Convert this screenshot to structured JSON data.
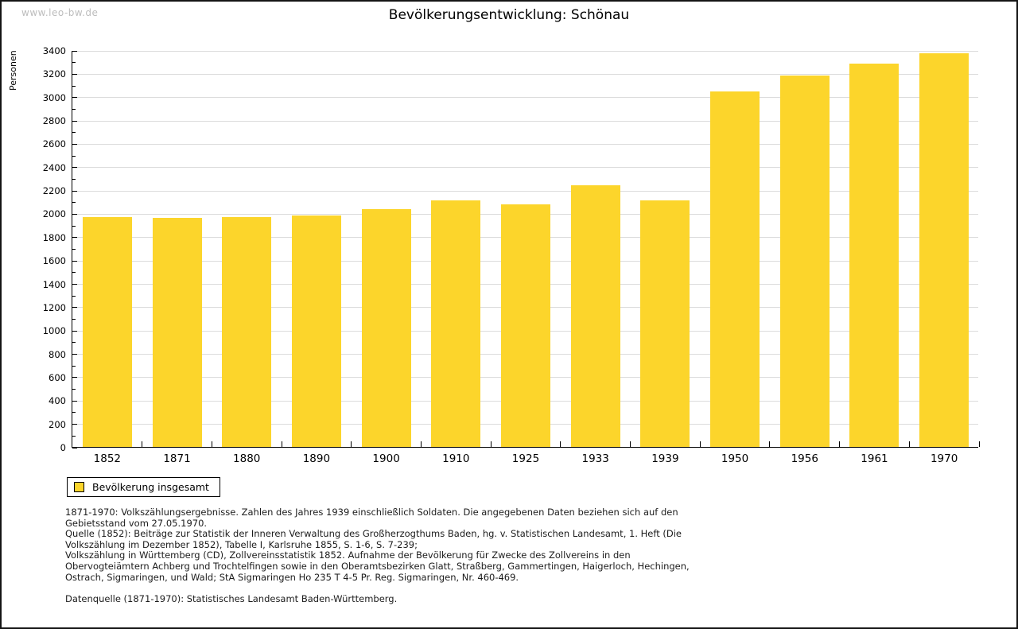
{
  "header": {
    "watermark": "www.leo-bw.de",
    "title": "Bevölkerungsentwicklung: Schönau"
  },
  "chart_data": {
    "type": "bar",
    "title": "Bevölkerungsentwicklung: Schönau",
    "xlabel": "",
    "ylabel": "Personen",
    "categories": [
      "1852",
      "1871",
      "1880",
      "1890",
      "1900",
      "1910",
      "1925",
      "1933",
      "1939",
      "1950",
      "1956",
      "1961",
      "1970"
    ],
    "values": [
      1970,
      1960,
      1970,
      1980,
      2035,
      2110,
      2075,
      2240,
      2110,
      3045,
      3180,
      3285,
      3370
    ],
    "series_name": "Bevölkerung insgesamt",
    "ylim": [
      0,
      3400
    ],
    "yticks": [
      0,
      200,
      400,
      600,
      800,
      1000,
      1200,
      1400,
      1600,
      1800,
      2000,
      2200,
      2400,
      2600,
      2800,
      3000,
      3200,
      3400
    ],
    "ytick_step": 200,
    "minor_tick_step": 100,
    "grid": true,
    "legend_position": "bottom-left",
    "bar_color": "#FCD52B"
  },
  "legend": {
    "label": "Bevölkerung insgesamt"
  },
  "footnotes": {
    "note1": "1871-1970: Volkszählungsergebnisse. Zahlen des Jahres 1939 einschließlich Soldaten. Die angegebenen Daten beziehen sich auf den Gebietsstand vom 27.05.1970.",
    "note2": "Quelle (1852): Beiträge zur Statistik der Inneren Verwaltung des Großherzogthums Baden, hg. v. Statistischen Landesamt, 1. Heft (Die Volkszählung im Dezember 1852), Tabelle I, Karlsruhe 1855, S. 1-6, S. 7-239;",
    "note3": "Volkszählung in Württemberg (CD), Zollvereinsstatistik 1852. Aufnahme der Bevölkerung für Zwecke des Zollvereins in den Obervogteiämtern Achberg und Trochtelfingen sowie in den Oberamtsbezirken Glatt, Straßberg, Gammertingen, Haigerloch, Hechingen, Ostrach, Sigmaringen, und Wald; StA Sigmaringen Ho 235 T 4-5 Pr. Reg. Sigmaringen, Nr. 460-469.",
    "datasource": "Datenquelle (1871-1970): Statistisches Landesamt Baden-Württemberg."
  },
  "colors": {
    "bar": "#FCD52B",
    "grid": "#DCDCDC",
    "axis": "#000000",
    "watermark": "#BDBDBD"
  }
}
